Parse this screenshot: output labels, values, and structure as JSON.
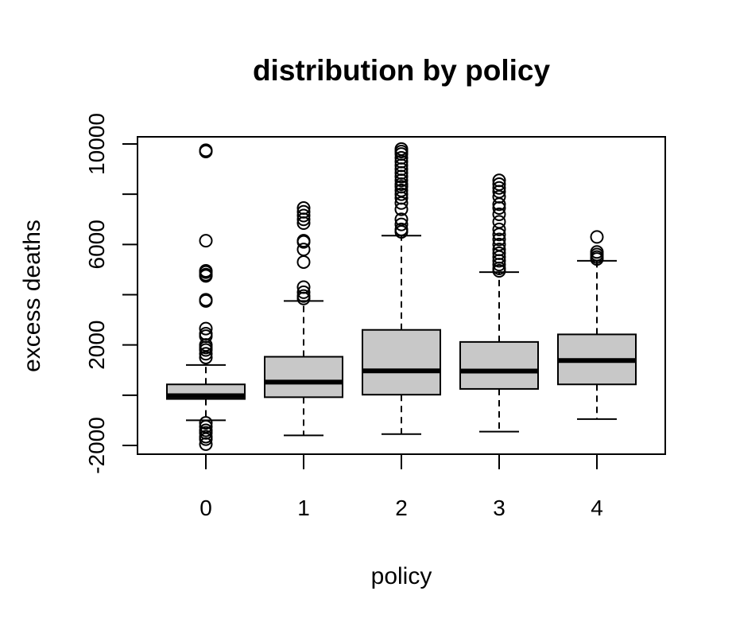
{
  "chart_data": {
    "type": "boxplot",
    "title": "distribution by policy",
    "xlabel": "policy",
    "ylabel": "excess deaths",
    "categories": [
      "0",
      "1",
      "2",
      "3",
      "4"
    ],
    "yticks": [
      -2000,
      2000,
      6000,
      10000
    ],
    "yticks_minor": [
      0,
      4000,
      8000
    ],
    "ylim": [
      -2300,
      10300
    ],
    "colors": {
      "box_fill": "#c8c8c8",
      "stroke": "#000000"
    },
    "boxes": [
      {
        "category": "0",
        "whisker_low": -1000,
        "q1": -150,
        "median": -20,
        "q3": 430,
        "whisker_high": 1200,
        "outliers": [
          9700,
          9750,
          6150,
          4950,
          4900,
          4800,
          4750,
          3800,
          3750,
          2650,
          2450,
          2350,
          2000,
          1900,
          1800,
          1650,
          1500,
          -1100,
          -1250,
          -1400,
          -1500,
          -1650,
          -1750,
          -1950
        ]
      },
      {
        "category": "1",
        "whisker_low": -1600,
        "q1": -80,
        "median": 520,
        "q3": 1530,
        "whisker_high": 3750,
        "outliers": [
          7450,
          7300,
          7150,
          7000,
          6850,
          6150,
          6100,
          5800,
          5300,
          4300,
          4100,
          3950,
          3850
        ]
      },
      {
        "category": "2",
        "whisker_low": -1550,
        "q1": 20,
        "median": 970,
        "q3": 2600,
        "whisker_high": 6350,
        "outliers": [
          9800,
          9700,
          9600,
          9450,
          9300,
          9150,
          9000,
          8850,
          8700,
          8550,
          8400,
          8300,
          8150,
          8000,
          7850,
          7650,
          7400,
          7000,
          6800,
          6600,
          6500
        ]
      },
      {
        "category": "3",
        "whisker_low": -1450,
        "q1": 250,
        "median": 960,
        "q3": 2120,
        "whisker_high": 4900,
        "outliers": [
          8550,
          8400,
          8250,
          8100,
          7900,
          7600,
          7450,
          7200,
          6900,
          6600,
          6400,
          6200,
          6000,
          5800,
          5650,
          5500,
          5350,
          5200,
          5050,
          4950
        ]
      },
      {
        "category": "4",
        "whisker_low": -950,
        "q1": 430,
        "median": 1380,
        "q3": 2420,
        "whisker_high": 5350,
        "outliers": [
          6300,
          5700,
          5600,
          5500,
          5420
        ]
      }
    ]
  }
}
